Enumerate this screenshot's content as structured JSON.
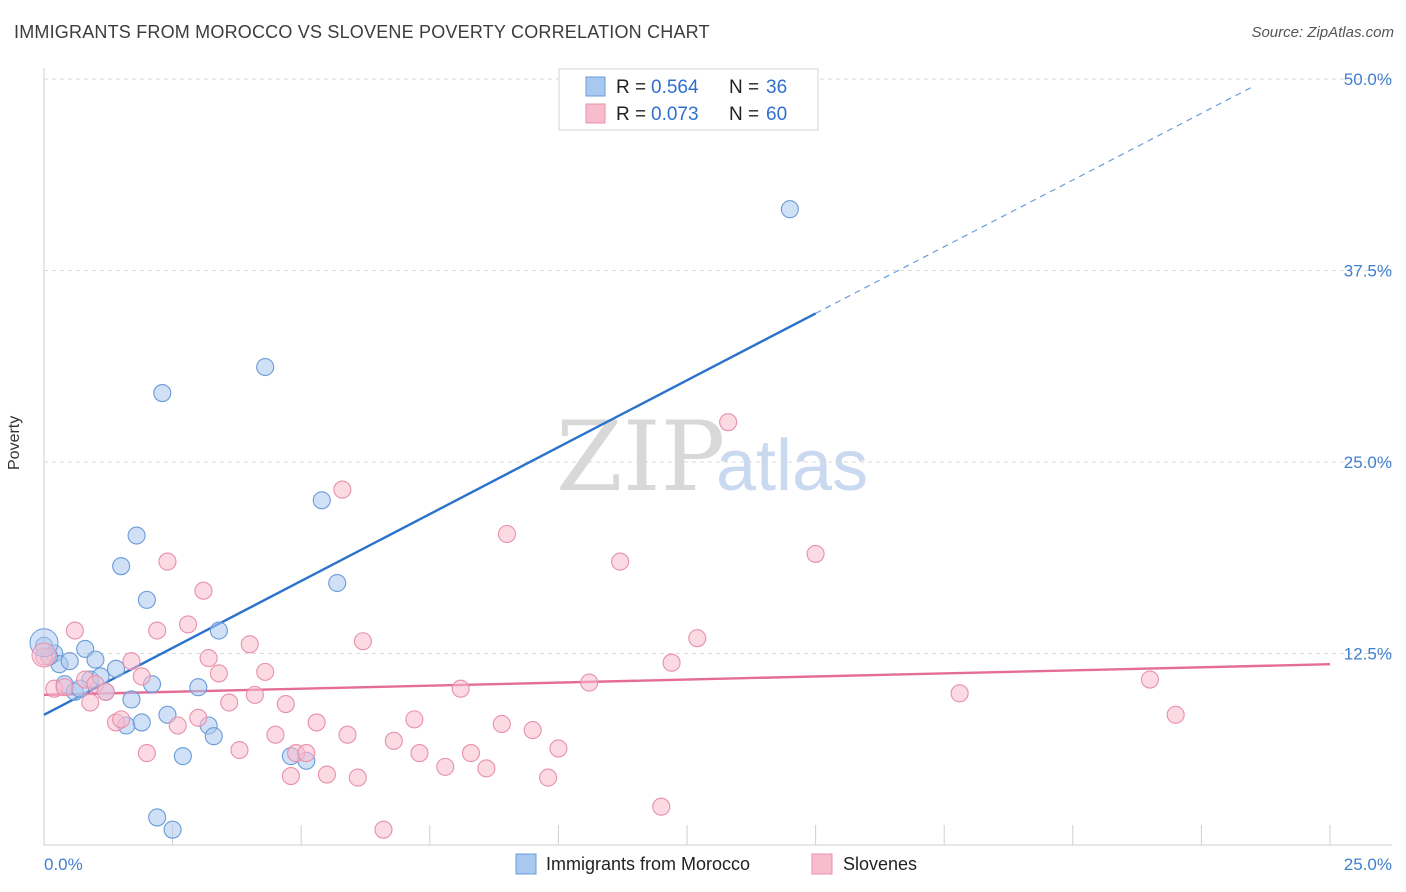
{
  "title": "IMMIGRANTS FROM MOROCCO VS SLOVENE POVERTY CORRELATION CHART",
  "source": "Source: ZipAtlas.com",
  "watermark": {
    "zip": "ZIP",
    "atlas": "atlas"
  },
  "colors": {
    "blue_fill": "#a9c8f0",
    "blue_stroke": "#6a9bd8",
    "blue_line": "#2a72cc",
    "pink_fill": "#f7bccd",
    "pink_stroke": "#e890ab",
    "pink_line": "#e46c96",
    "grid": "#d9d9d9",
    "axis_label": "#3f7fcf"
  },
  "legend": {
    "rows": [
      {
        "r_label": "R = ",
        "r_value": "0.564",
        "n_label": "N = ",
        "n_value": "36"
      },
      {
        "r_label": "R = ",
        "r_value": "0.073",
        "n_label": "N = ",
        "n_value": "60"
      }
    ]
  },
  "chart_data": {
    "type": "scatter",
    "title": "IMMIGRANTS FROM MOROCCO VS SLOVENE POVERTY CORRELATION CHART",
    "xlabel": "",
    "ylabel": "Poverty",
    "xlim": [
      0,
      25
    ],
    "ylim": [
      0,
      50
    ],
    "x_tick_labels": [
      "0.0%",
      "25.0%"
    ],
    "y_ticks": [
      12.5,
      25.0,
      37.5,
      50.0
    ],
    "y_tick_labels": [
      "12.5%",
      "25.0%",
      "37.5%",
      "50.0%"
    ],
    "series": [
      {
        "name": "Immigrants from Morocco",
        "color": "blue",
        "r": 0.564,
        "n": 36,
        "trend": {
          "x0": 0,
          "y0": 8.5,
          "x1": 15.0,
          "y1": 34.7,
          "x_dash_end": 23.5,
          "y_dash_end": 49.5
        },
        "points": [
          [
            0.0,
            13.0
          ],
          [
            0.2,
            12.5
          ],
          [
            0.3,
            11.8
          ],
          [
            0.4,
            10.5
          ],
          [
            0.5,
            12.0
          ],
          [
            0.6,
            10.0
          ],
          [
            0.8,
            12.8
          ],
          [
            0.9,
            10.8
          ],
          [
            1.0,
            12.1
          ],
          [
            1.1,
            11.0
          ],
          [
            1.2,
            10.0
          ],
          [
            1.4,
            11.5
          ],
          [
            1.5,
            18.2
          ],
          [
            1.6,
            7.8
          ],
          [
            1.7,
            9.5
          ],
          [
            1.8,
            20.2
          ],
          [
            1.9,
            8.0
          ],
          [
            2.0,
            16.0
          ],
          [
            2.1,
            10.5
          ],
          [
            2.2,
            1.8
          ],
          [
            2.3,
            29.5
          ],
          [
            2.4,
            8.5
          ],
          [
            2.5,
            1.0
          ],
          [
            2.7,
            5.8
          ],
          [
            3.0,
            10.3
          ],
          [
            3.2,
            7.8
          ],
          [
            3.3,
            7.1
          ],
          [
            3.4,
            14.0
          ],
          [
            4.3,
            31.2
          ],
          [
            4.8,
            5.8
          ],
          [
            5.1,
            5.5
          ],
          [
            5.4,
            22.5
          ],
          [
            5.7,
            17.1
          ],
          [
            14.5,
            41.5
          ],
          [
            0.1,
            12.3
          ],
          [
            0.7,
            10.2
          ]
        ]
      },
      {
        "name": "Slovenes",
        "color": "pink",
        "r": 0.073,
        "n": 60,
        "trend": {
          "x0": 0,
          "y0": 9.8,
          "x1": 25.0,
          "y1": 11.8
        },
        "points": [
          [
            0.0,
            12.3
          ],
          [
            0.2,
            10.2
          ],
          [
            0.4,
            10.3
          ],
          [
            0.6,
            14.0
          ],
          [
            0.8,
            10.8
          ],
          [
            0.9,
            9.3
          ],
          [
            1.0,
            10.5
          ],
          [
            1.2,
            10.0
          ],
          [
            1.4,
            8.0
          ],
          [
            1.5,
            8.2
          ],
          [
            1.7,
            12.0
          ],
          [
            1.9,
            11.0
          ],
          [
            2.0,
            6.0
          ],
          [
            2.2,
            14.0
          ],
          [
            2.4,
            18.5
          ],
          [
            2.6,
            7.8
          ],
          [
            2.8,
            14.4
          ],
          [
            3.0,
            8.3
          ],
          [
            3.1,
            16.6
          ],
          [
            3.2,
            12.2
          ],
          [
            3.4,
            11.2
          ],
          [
            3.6,
            9.3
          ],
          [
            3.8,
            6.2
          ],
          [
            4.0,
            13.1
          ],
          [
            4.1,
            9.8
          ],
          [
            4.3,
            11.3
          ],
          [
            4.5,
            7.2
          ],
          [
            4.7,
            9.2
          ],
          [
            4.8,
            4.5
          ],
          [
            4.9,
            6.0
          ],
          [
            5.1,
            6.0
          ],
          [
            5.3,
            8.0
          ],
          [
            5.5,
            4.6
          ],
          [
            5.8,
            23.2
          ],
          [
            5.9,
            7.2
          ],
          [
            6.1,
            4.4
          ],
          [
            6.2,
            13.3
          ],
          [
            6.6,
            1.0
          ],
          [
            6.8,
            6.8
          ],
          [
            7.2,
            8.2
          ],
          [
            7.3,
            6.0
          ],
          [
            7.8,
            5.1
          ],
          [
            8.1,
            10.2
          ],
          [
            8.3,
            6.0
          ],
          [
            8.6,
            5.0
          ],
          [
            8.9,
            7.9
          ],
          [
            9.0,
            20.3
          ],
          [
            9.5,
            7.5
          ],
          [
            9.8,
            4.4
          ],
          [
            10.0,
            6.3
          ],
          [
            10.6,
            10.6
          ],
          [
            11.2,
            18.5
          ],
          [
            12.0,
            2.5
          ],
          [
            12.2,
            11.9
          ],
          [
            12.7,
            13.5
          ],
          [
            13.3,
            27.6
          ],
          [
            15.0,
            19.0
          ],
          [
            17.8,
            9.9
          ],
          [
            21.5,
            10.8
          ],
          [
            22.0,
            8.5
          ]
        ]
      }
    ],
    "legend_position": "top-center"
  },
  "bottom_legend": [
    "Immigrants from Morocco",
    "Slovenes"
  ]
}
